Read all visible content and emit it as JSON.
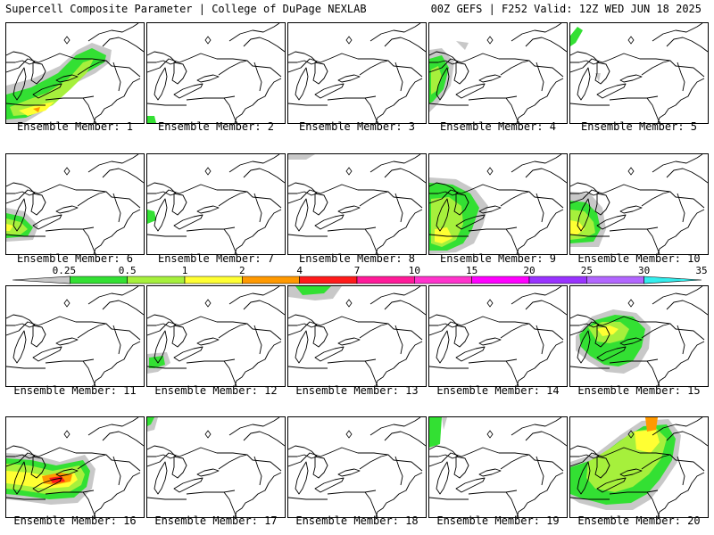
{
  "header": {
    "left_title": "Supercell Composite Parameter | College of DuPage NEXLAB",
    "right_title": "00Z GEFS | F252 Valid: 12Z WED JUN 18 2025"
  },
  "colorbar": {
    "ticks": [
      "0.25",
      "0.5",
      "1",
      "2",
      "4",
      "7",
      "10",
      "15",
      "20",
      "25",
      "30",
      "35"
    ],
    "colors": [
      "#c8c8c8",
      "#33e033",
      "#a6f03c",
      "#ffff33",
      "#ff9900",
      "#ff1a1a",
      "#ff1a99",
      "#ff33cc",
      "#ff00ff",
      "#9933ff",
      "#b266ff",
      "#33eeee"
    ]
  },
  "panels": [
    {
      "label": "Ensemble Member: 1"
    },
    {
      "label": "Ensemble Member: 2"
    },
    {
      "label": "Ensemble Member: 3"
    },
    {
      "label": "Ensemble Member: 4"
    },
    {
      "label": "Ensemble Member: 5"
    },
    {
      "label": "Ensemble Member: 6"
    },
    {
      "label": "Ensemble Member: 7"
    },
    {
      "label": "Ensemble Member: 8"
    },
    {
      "label": "Ensemble Member: 9"
    },
    {
      "label": "Ensemble Member: 10"
    },
    {
      "label": "Ensemble Member: 11"
    },
    {
      "label": "Ensemble Member: 12"
    },
    {
      "label": "Ensemble Member: 13"
    },
    {
      "label": "Ensemble Member: 14"
    },
    {
      "label": "Ensemble Member: 15"
    },
    {
      "label": "Ensemble Member: 16"
    },
    {
      "label": "Ensemble Member: 17"
    },
    {
      "label": "Ensemble Member: 18"
    },
    {
      "label": "Ensemble Member: 19"
    },
    {
      "label": "Ensemble Member: 20"
    }
  ]
}
